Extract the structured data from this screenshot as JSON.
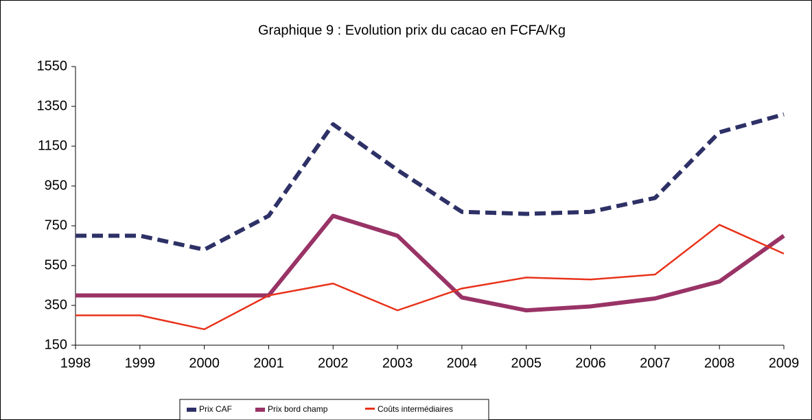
{
  "chart_data": {
    "type": "line",
    "title": "Graphique 9 : Evolution prix du cacao en FCFA/Kg",
    "categories": [
      "1998",
      "1999",
      "2000",
      "2001",
      "2002",
      "2003",
      "2004",
      "2005",
      "2006",
      "2007",
      "2008",
      "2009"
    ],
    "series": [
      {
        "name": "Prix CAF",
        "color": "#2e3166",
        "dash": true,
        "width": 6,
        "values": [
          700,
          700,
          630,
          800,
          1260,
          1030,
          820,
          810,
          820,
          890,
          1220,
          1310
        ]
      },
      {
        "name": "Prix bord champ",
        "color": "#993366",
        "dash": false,
        "width": 6,
        "values": [
          400,
          400,
          400,
          400,
          800,
          700,
          390,
          325,
          345,
          385,
          470,
          700
        ]
      },
      {
        "name": "Coûts intermédiaires",
        "color": "#e8321a",
        "dash": false,
        "width": 2.5,
        "values": [
          300,
          300,
          230,
          400,
          460,
          325,
          435,
          490,
          480,
          505,
          755,
          610
        ]
      }
    ],
    "ylim": [
      150,
      1550
    ],
    "yticks": [
      150,
      350,
      550,
      750,
      950,
      1150,
      1350,
      1550
    ],
    "grid": false,
    "legend": "bottom"
  }
}
